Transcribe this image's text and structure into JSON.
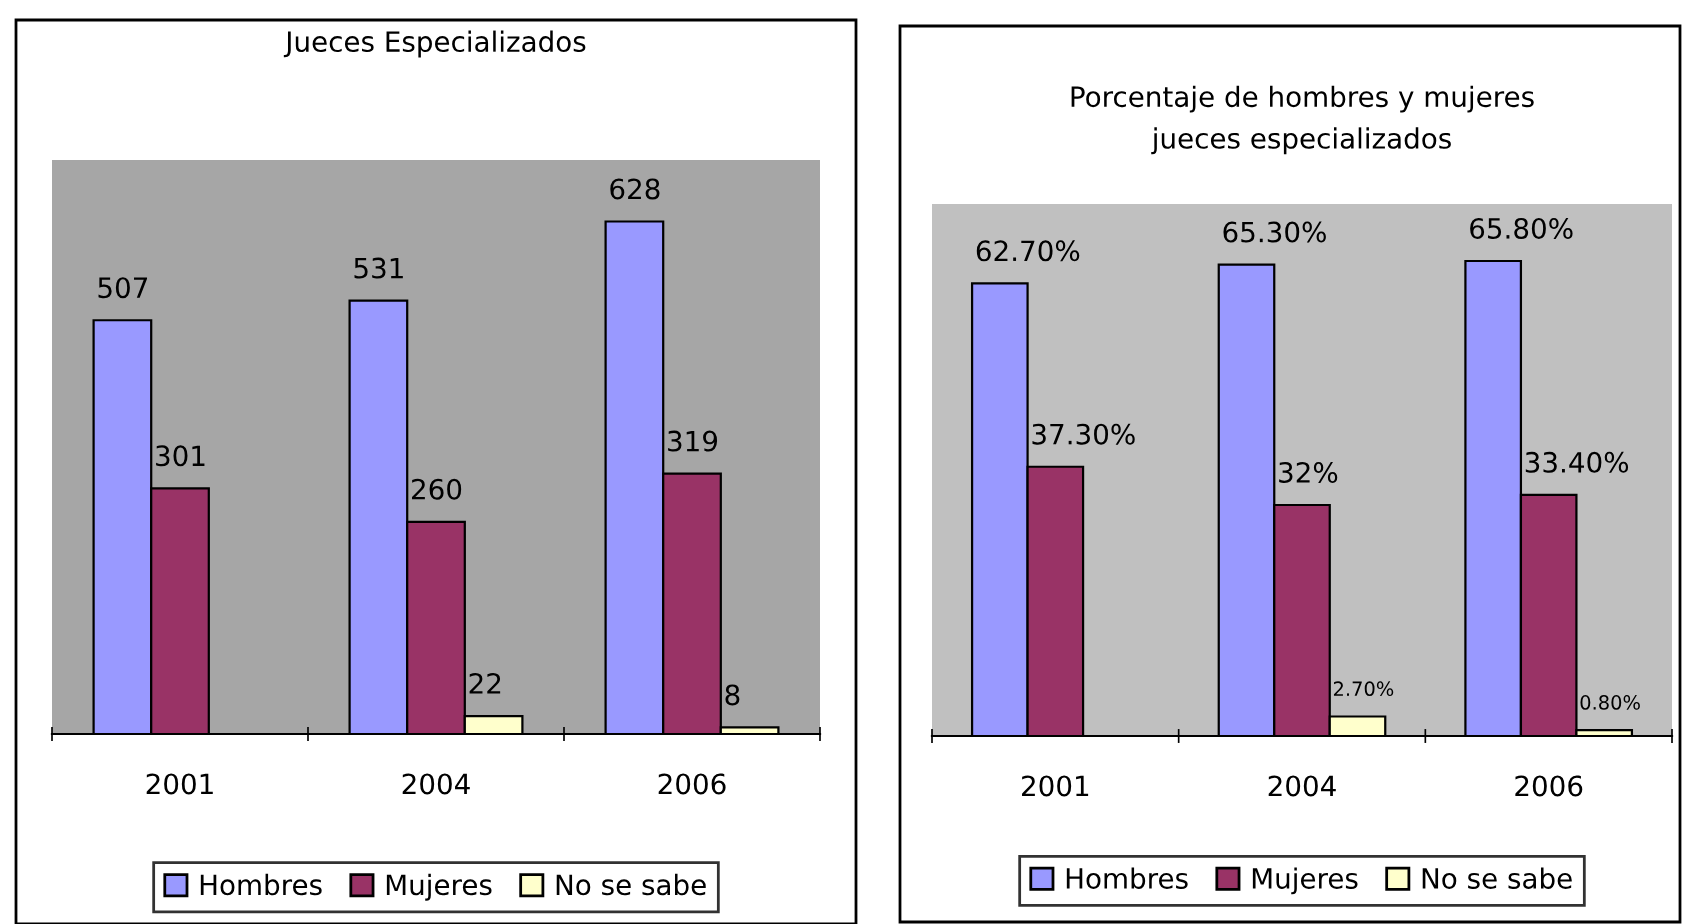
{
  "chart_data": [
    {
      "type": "bar",
      "title": "Jueces Especializados",
      "categories": [
        "2001",
        "2004",
        "2006"
      ],
      "series": [
        {
          "name": "Hombres",
          "color": "#9999ff",
          "values": [
            507,
            531,
            628
          ]
        },
        {
          "name": "Mujeres",
          "color": "#993366",
          "values": [
            301,
            260,
            319
          ]
        },
        {
          "name": "No se sabe",
          "color": "#ffffcc",
          "values": [
            null,
            22,
            8
          ]
        }
      ],
      "data_labels": true,
      "legend": "bottom",
      "grid": false
    },
    {
      "type": "bar",
      "title": "Porcentaje de hombres y mujeres\njueces especializados",
      "categories": [
        "2001",
        "2004",
        "2006"
      ],
      "series": [
        {
          "name": "Hombres",
          "color": "#9999ff",
          "values": [
            62.7,
            65.3,
            65.8
          ],
          "value_labels": [
            "62.70%",
            "65.30%",
            "65.80%"
          ]
        },
        {
          "name": "Mujeres",
          "color": "#993366",
          "values": [
            37.3,
            32,
            33.4
          ],
          "value_labels": [
            "37.30%",
            "32%",
            "33.40%"
          ]
        },
        {
          "name": "No se sabe",
          "color": "#ffffcc",
          "values": [
            null,
            2.7,
            0.8
          ],
          "value_labels": [
            null,
            "2.70%",
            "0.80%"
          ]
        }
      ],
      "legend": "bottom",
      "grid": false
    }
  ]
}
